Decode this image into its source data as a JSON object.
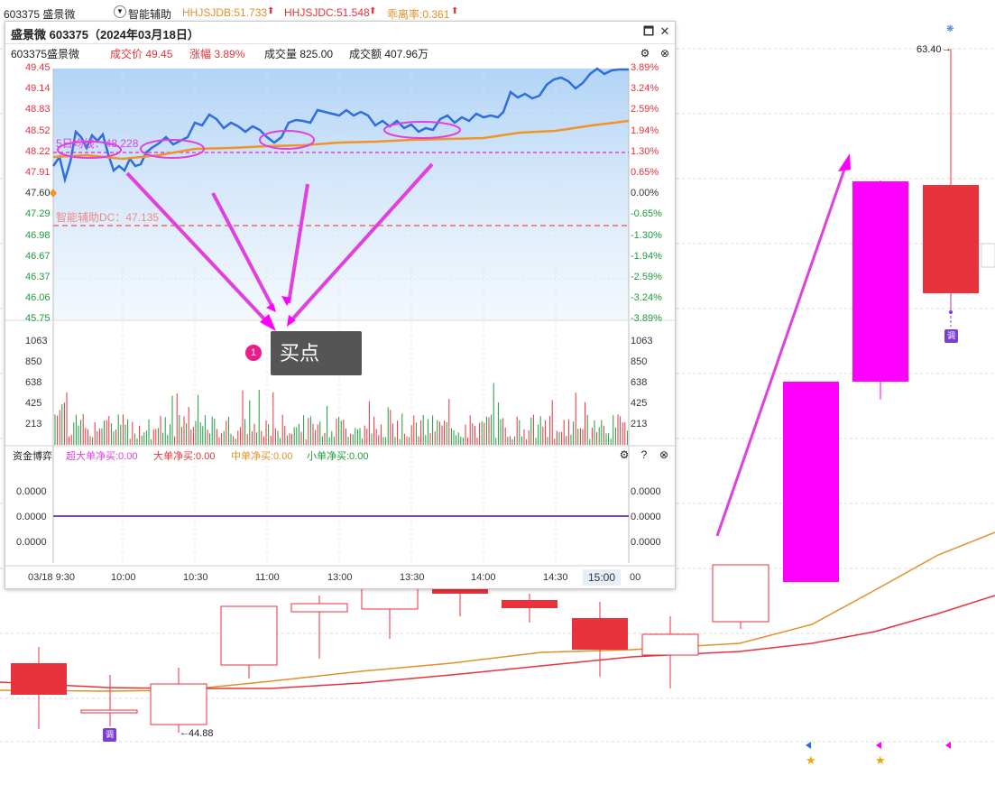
{
  "topbar": {
    "code_name": "603375 盛景微",
    "smart_assist": "智能辅助",
    "hhjsjdb": "HHJSJDB:51.733",
    "hhjsjdc": "HHJSJDC:51.548",
    "deviation": "乖离率:0.361",
    "up_arrow": "⬆"
  },
  "main_chart": {
    "high_label": "63.40",
    "low_label": "44.88",
    "badge_label": "调"
  },
  "popup": {
    "title": "盛景微 603375（2024年03月18日）",
    "stock_label": "603375盛景微",
    "price_label": "成交价 49.45",
    "change_label": "涨幅 3.89%",
    "volume_label": "成交量 825.00",
    "amount_label": "成交额 407.96万",
    "ma5_label": "5日均线：48.228",
    "dc_label": "智能辅助DC：47.135",
    "price_ticks": [
      "49.45",
      "49.14",
      "48.83",
      "48.52",
      "48.22",
      "47.91",
      "47.60",
      "47.29",
      "46.98",
      "46.67",
      "46.37",
      "46.06",
      "45.75"
    ],
    "pct_ticks": [
      "3.89%",
      "3.24%",
      "2.59%",
      "1.94%",
      "1.30%",
      "0.65%",
      "0.00%",
      "-0.65%",
      "-1.30%",
      "-1.94%",
      "-2.59%",
      "-3.24%",
      "-3.89%"
    ],
    "vol_ticks": [
      "1063",
      "850",
      "638",
      "425",
      "213"
    ],
    "buy_point": "买点",
    "buy_num": "1",
    "capital": {
      "title": "资金博弈",
      "super": "超大单净买:0.00",
      "big": "大单净买:0.00",
      "mid": "中单净买:0.00",
      "small": "小单净买:0.00",
      "ticks": [
        "0.0000",
        "0.0000",
        "0.0000"
      ]
    },
    "time_ticks": [
      "03/18 9:30",
      "10:00",
      "10:30",
      "11:00",
      "13:00",
      "13:30",
      "14:00",
      "14:30",
      "15:00",
      "00"
    ]
  },
  "colors": {
    "up": "#e8323c",
    "down": "#1e9b3c",
    "magenta": "#ff00ff",
    "price_line": "#2f6fdc",
    "avg_line": "#f0942a"
  }
}
